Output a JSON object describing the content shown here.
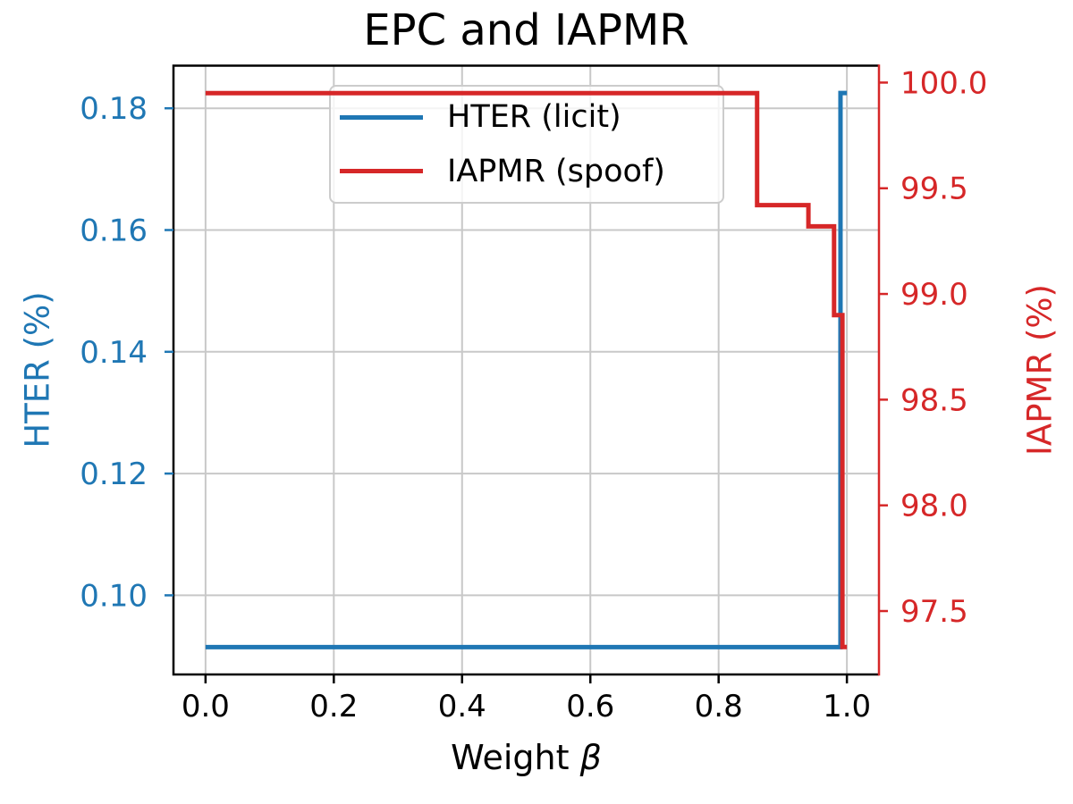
{
  "chart_data": {
    "type": "line",
    "title": "EPC and IAPMR",
    "x_axis": {
      "label_prefix": "Weight",
      "label_symbol": "β",
      "range": [
        -0.05,
        1.05
      ],
      "tick_values": [
        0.0,
        0.2,
        0.4,
        0.6,
        0.8,
        1.0
      ],
      "tick_labels": [
        "0.0",
        "0.2",
        "0.4",
        "0.6",
        "0.8",
        "1.0"
      ],
      "color": "#000000"
    },
    "left_axis": {
      "label": "HTER (%)",
      "color": "#1f77b4",
      "range": [
        0.087,
        0.187
      ],
      "tick_values": [
        0.18,
        0.16,
        0.14,
        0.12,
        0.1
      ],
      "tick_labels": [
        "0.18",
        "0.16",
        "0.14",
        "0.12",
        "0.10"
      ]
    },
    "right_axis": {
      "label": "IAPMR (%)",
      "color": "#d62728",
      "range": [
        97.2,
        100.08
      ],
      "tick_values": [
        100.0,
        99.5,
        99.0,
        98.5,
        98.0,
        97.5
      ],
      "tick_labels": [
        "100.0",
        "99.5",
        "99.0",
        "98.5",
        "98.0",
        "97.5"
      ]
    },
    "grid": {
      "show": true,
      "color": "#c8c8c8"
    },
    "series": [
      {
        "name": "HTER (licit)",
        "axis": "left",
        "color": "#1f77b4",
        "points": [
          [
            0.0,
            0.0915
          ],
          [
            0.99,
            0.0915
          ],
          [
            0.99,
            0.1825
          ],
          [
            1.0,
            0.1825
          ]
        ]
      },
      {
        "name": "IAPMR (spoof)",
        "axis": "right",
        "color": "#d62728",
        "points": [
          [
            0.0,
            99.95
          ],
          [
            0.86,
            99.95
          ],
          [
            0.86,
            99.42
          ],
          [
            0.94,
            99.42
          ],
          [
            0.94,
            99.32
          ],
          [
            0.98,
            99.32
          ],
          [
            0.98,
            98.9
          ],
          [
            0.993,
            98.9
          ],
          [
            0.993,
            97.33
          ],
          [
            1.0,
            97.33
          ]
        ]
      }
    ],
    "legend": {
      "position": "upper center-left",
      "entries": [
        {
          "label": "HTER (licit)",
          "color": "#1f77b4"
        },
        {
          "label": "IAPMR (spoof)",
          "color": "#d62728"
        }
      ]
    }
  }
}
